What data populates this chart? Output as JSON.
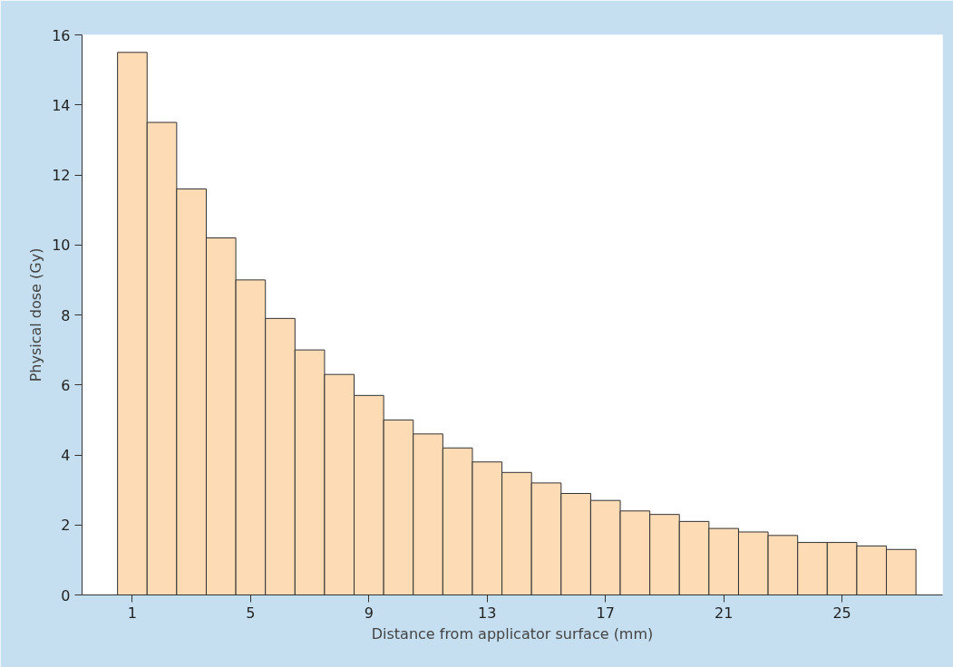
{
  "chart_data": {
    "type": "bar",
    "xlabel": "Distance from applicator surface (mm)",
    "ylabel": "Physical dose (Gy)",
    "x": [
      1,
      2,
      3,
      4,
      5,
      6,
      7,
      8,
      9,
      10,
      11,
      12,
      13,
      14,
      15,
      16,
      17,
      18,
      19,
      20,
      21,
      22,
      23,
      24,
      25,
      26,
      27
    ],
    "values": [
      15.5,
      13.5,
      11.6,
      10.2,
      9.0,
      7.9,
      7.0,
      6.3,
      5.7,
      5.0,
      4.6,
      4.2,
      3.8,
      3.5,
      3.2,
      2.9,
      2.7,
      2.4,
      2.3,
      2.1,
      1.9,
      1.8,
      1.7,
      1.5,
      1.5,
      1.4,
      1.3
    ],
    "color": "#fddcb5",
    "xlim": [
      -0.7,
      28.4
    ],
    "xticks": [
      1,
      5,
      9,
      13,
      17,
      21,
      25
    ],
    "ylim": [
      0,
      16
    ],
    "yticks": [
      0,
      2,
      4,
      6,
      8,
      10,
      12,
      14,
      16
    ],
    "grid": false
  }
}
